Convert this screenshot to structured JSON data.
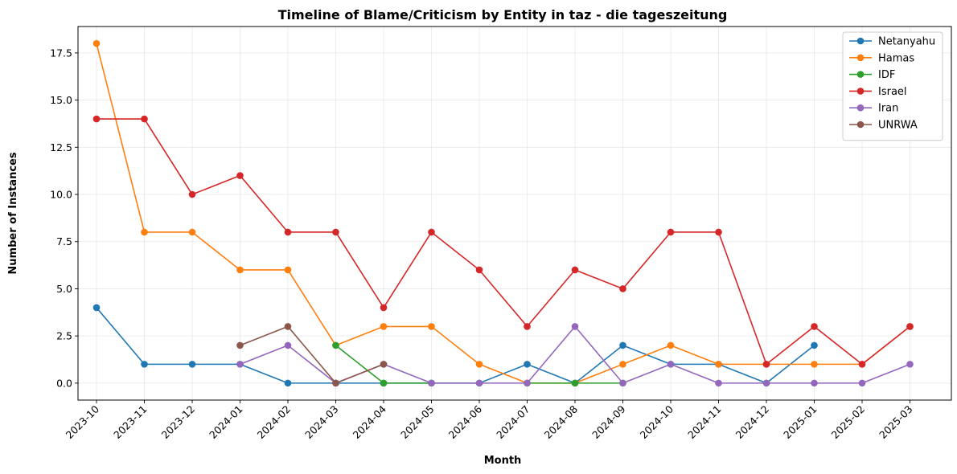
{
  "chart_data": {
    "type": "line",
    "title": "Timeline of Blame/Criticism by Entity in taz - die tageszeitung",
    "xlabel": "Month",
    "ylabel": "Number of Instances",
    "ylim": [
      -0.9,
      18.9
    ],
    "yticks": [
      "0.0",
      "2.5",
      "5.0",
      "7.5",
      "10.0",
      "12.5",
      "15.0",
      "17.5"
    ],
    "grid": true,
    "legend_position": "top-right",
    "categories": [
      "2023-10",
      "2023-11",
      "2023-12",
      "2024-01",
      "2024-02",
      "2024-03",
      "2024-04",
      "2024-05",
      "2024-06",
      "2024-07",
      "2024-08",
      "2024-09",
      "2024-10",
      "2024-11",
      "2024-12",
      "2025-01",
      "2025-02",
      "2025-03"
    ],
    "series": [
      {
        "name": "Netanyahu",
        "color": "#1f77b4",
        "values": [
          4,
          1,
          1,
          1,
          0,
          0,
          0,
          0,
          0,
          1,
          0,
          2,
          1,
          1,
          0,
          2,
          null,
          null
        ]
      },
      {
        "name": "Hamas",
        "color": "#ff7f0e",
        "values": [
          18,
          8,
          8,
          6,
          6,
          2,
          3,
          3,
          1,
          0,
          0,
          1,
          2,
          1,
          1,
          1,
          1,
          3
        ]
      },
      {
        "name": "IDF",
        "color": "#2ca02c",
        "values": [
          null,
          null,
          null,
          null,
          null,
          2,
          0,
          0,
          null,
          0,
          0,
          0,
          null,
          null,
          null,
          null,
          null,
          null
        ]
      },
      {
        "name": "Israel",
        "color": "#d62728",
        "values": [
          14,
          14,
          10,
          11,
          8,
          8,
          4,
          8,
          6,
          3,
          6,
          5,
          8,
          8,
          1,
          3,
          1,
          3
        ]
      },
      {
        "name": "Iran",
        "color": "#9467bd",
        "values": [
          null,
          null,
          null,
          1,
          2,
          0,
          1,
          0,
          0,
          0,
          3,
          0,
          1,
          0,
          0,
          0,
          0,
          1
        ]
      },
      {
        "name": "UNRWA",
        "color": "#8c564b",
        "values": [
          null,
          null,
          null,
          2,
          3,
          0,
          1,
          null,
          null,
          null,
          null,
          null,
          null,
          null,
          null,
          null,
          null,
          null
        ]
      }
    ]
  }
}
